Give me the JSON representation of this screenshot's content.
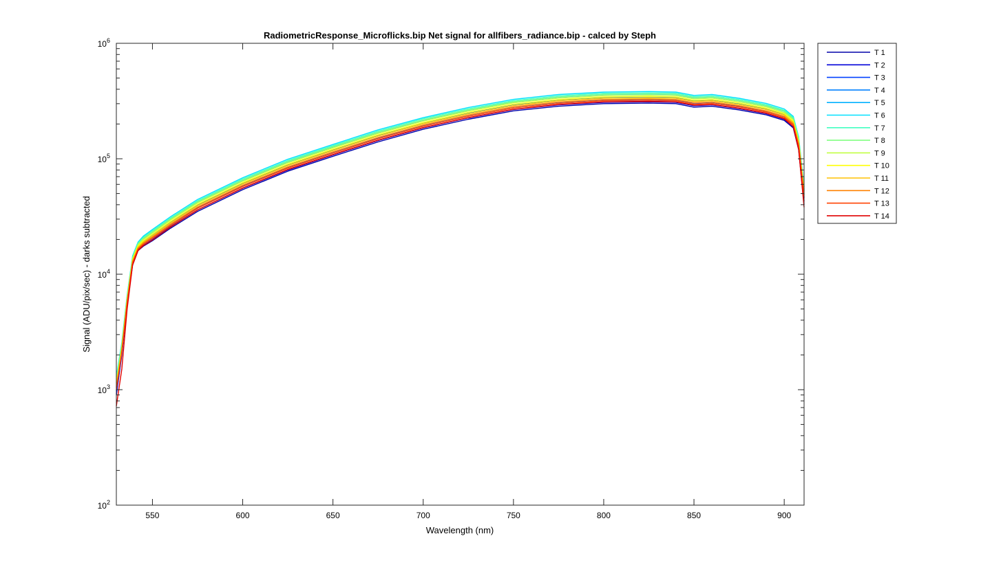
{
  "chart_data": {
    "type": "line",
    "title": "RadiometricResponse_Microflicks.bip  Net signal for allfibers_radiance.bip - calced by Steph",
    "xlabel": "Wavelength (nm)",
    "ylabel": "Signal (ADU/pix/sec) - darks subtracted",
    "xlim": [
      530,
      911
    ],
    "ylim": [
      100,
      1000000
    ],
    "yscale": "log",
    "x_ticks": [
      "550",
      "600",
      "650",
      "700",
      "750",
      "800",
      "850",
      "900"
    ],
    "y_ticks": [
      {
        "base": "10",
        "exp": "2",
        "value": 100
      },
      {
        "base": "10",
        "exp": "3",
        "value": 1000
      },
      {
        "base": "10",
        "exp": "4",
        "value": 10000
      },
      {
        "base": "10",
        "exp": "5",
        "value": 100000
      },
      {
        "base": "10",
        "exp": "6",
        "value": 1000000
      }
    ],
    "grid": false,
    "legend_position": "outside-top-right",
    "x": [
      530,
      533,
      536,
      539,
      542,
      545,
      550,
      560,
      575,
      600,
      625,
      650,
      675,
      700,
      725,
      750,
      775,
      800,
      825,
      840,
      850,
      860,
      875,
      890,
      900,
      905,
      908,
      911
    ],
    "series": [
      {
        "name": "T 1",
        "color": "#0000a8",
        "values": [
          900,
          2000,
          5500,
          12000,
          16000,
          17500,
          19500,
          25000,
          35000,
          54000,
          78000,
          105000,
          140000,
          180000,
          220000,
          260000,
          285000,
          300000,
          303000,
          300000,
          280000,
          285000,
          265000,
          240000,
          215000,
          185000,
          120000,
          40000
        ]
      },
      {
        "name": "T 2",
        "color": "#0000d8",
        "values": [
          920,
          2050,
          5600,
          12200,
          16200,
          17800,
          20000,
          25800,
          36000,
          55500,
          80000,
          108000,
          144000,
          185000,
          226000,
          267000,
          293000,
          308000,
          311000,
          308000,
          288000,
          293000,
          272000,
          246000,
          220000,
          190000,
          125000,
          43000
        ]
      },
      {
        "name": "T 3",
        "color": "#0040ff",
        "values": [
          980,
          2150,
          5800,
          12700,
          16800,
          18600,
          21000,
          27000,
          38000,
          58500,
          84500,
          114000,
          152000,
          195000,
          238000,
          281000,
          308000,
          324000,
          327000,
          324000,
          303000,
          308000,
          286000,
          259000,
          232000,
          200000,
          132000,
          46000
        ]
      },
      {
        "name": "T 4",
        "color": "#0080ff",
        "values": [
          1050,
          2250,
          6000,
          13200,
          17400,
          19400,
          22000,
          28400,
          40000,
          61500,
          89000,
          120000,
          160000,
          205000,
          250000,
          295000,
          324000,
          341000,
          344000,
          341000,
          319000,
          324000,
          301000,
          272000,
          244000,
          210000,
          139000,
          49000
        ]
      },
      {
        "name": "T 5",
        "color": "#00b0ff",
        "values": [
          1150,
          2400,
          6300,
          13800,
          18200,
          20400,
          23200,
          30000,
          42200,
          65000,
          94000,
          126500,
          169000,
          216000,
          264000,
          311000,
          342000,
          360000,
          363000,
          360000,
          337000,
          342000,
          318000,
          287000,
          257000,
          222000,
          147000,
          53000
        ]
      },
      {
        "name": "T 6",
        "color": "#00e0ff",
        "values": [
          1300,
          2550,
          6600,
          14400,
          19000,
          21400,
          24400,
          31500,
          44400,
          68500,
          99000,
          133000,
          178000,
          227000,
          278000,
          327000,
          360000,
          378000,
          382000,
          378000,
          354000,
          360000,
          334000,
          302000,
          270000,
          233000,
          155000,
          57000
        ]
      },
      {
        "name": "T 7",
        "color": "#40ffc0",
        "values": [
          1250,
          2480,
          6450,
          14100,
          18600,
          20900,
          23800,
          30700,
          43300,
          66800,
          96500,
          130000,
          173500,
          222000,
          271000,
          319000,
          351000,
          369000,
          372000,
          369000,
          345000,
          351000,
          326000,
          294000,
          263000,
          227000,
          151000,
          55000
        ]
      },
      {
        "name": "T 8",
        "color": "#80ff80",
        "values": [
          1200,
          2400,
          6300,
          13900,
          18300,
          20500,
          23300,
          30100,
          42400,
          65400,
          94500,
          127200,
          169800,
          217000,
          265000,
          312000,
          343000,
          361000,
          364000,
          361000,
          338000,
          343000,
          319000,
          288000,
          258000,
          222000,
          148000,
          54000
        ]
      },
      {
        "name": "T 9",
        "color": "#c0ff40",
        "values": [
          1160,
          2330,
          6150,
          13600,
          17900,
          20000,
          22700,
          29400,
          41400,
          63800,
          92200,
          124100,
          165700,
          212000,
          259000,
          305000,
          335000,
          352000,
          355000,
          352000,
          330000,
          335000,
          311000,
          281000,
          251000,
          217000,
          144000,
          52500
        ]
      },
      {
        "name": "T 10",
        "color": "#ffff00",
        "values": [
          1120,
          2270,
          6000,
          13300,
          17500,
          19500,
          22100,
          28600,
          40300,
          62100,
          89700,
          120800,
          161200,
          206000,
          252000,
          297000,
          326000,
          343000,
          346000,
          343000,
          321000,
          326000,
          303000,
          274000,
          245000,
          211000,
          140000,
          51000
        ]
      },
      {
        "name": "T 11",
        "color": "#ffc000",
        "values": [
          1080,
          2210,
          5880,
          13000,
          17100,
          19000,
          21500,
          27800,
          39200,
          60500,
          87400,
          117700,
          157100,
          201000,
          245000,
          289000,
          318000,
          334000,
          337000,
          334000,
          313000,
          318000,
          295000,
          267000,
          239000,
          206000,
          137000,
          49500
        ]
      },
      {
        "name": "T 12",
        "color": "#ff8000",
        "values": [
          1040,
          2150,
          5760,
          12800,
          16800,
          18600,
          21000,
          27100,
          38200,
          58900,
          85100,
          114600,
          153000,
          196000,
          239000,
          282000,
          310000,
          326000,
          329000,
          326000,
          305000,
          310000,
          288000,
          260000,
          233000,
          201000,
          133000,
          48000
        ]
      },
      {
        "name": "T 13",
        "color": "#ff4000",
        "values": [
          1000,
          2100,
          5650,
          12500,
          16500,
          18200,
          20500,
          26400,
          37200,
          57400,
          82900,
          111600,
          149000,
          191000,
          233000,
          275000,
          302000,
          318000,
          321000,
          318000,
          297000,
          302000,
          281000,
          254000,
          227000,
          196000,
          130000,
          46500
        ]
      },
      {
        "name": "T 14",
        "color": "#e00000",
        "values": [
          720,
          1500,
          5000,
          12000,
          16000,
          17700,
          19800,
          25600,
          36000,
          55800,
          80700,
          108700,
          145000,
          186000,
          227000,
          268000,
          295000,
          311000,
          314000,
          311000,
          291000,
          295000,
          274000,
          248000,
          222000,
          190000,
          120000,
          38000
        ]
      }
    ]
  }
}
